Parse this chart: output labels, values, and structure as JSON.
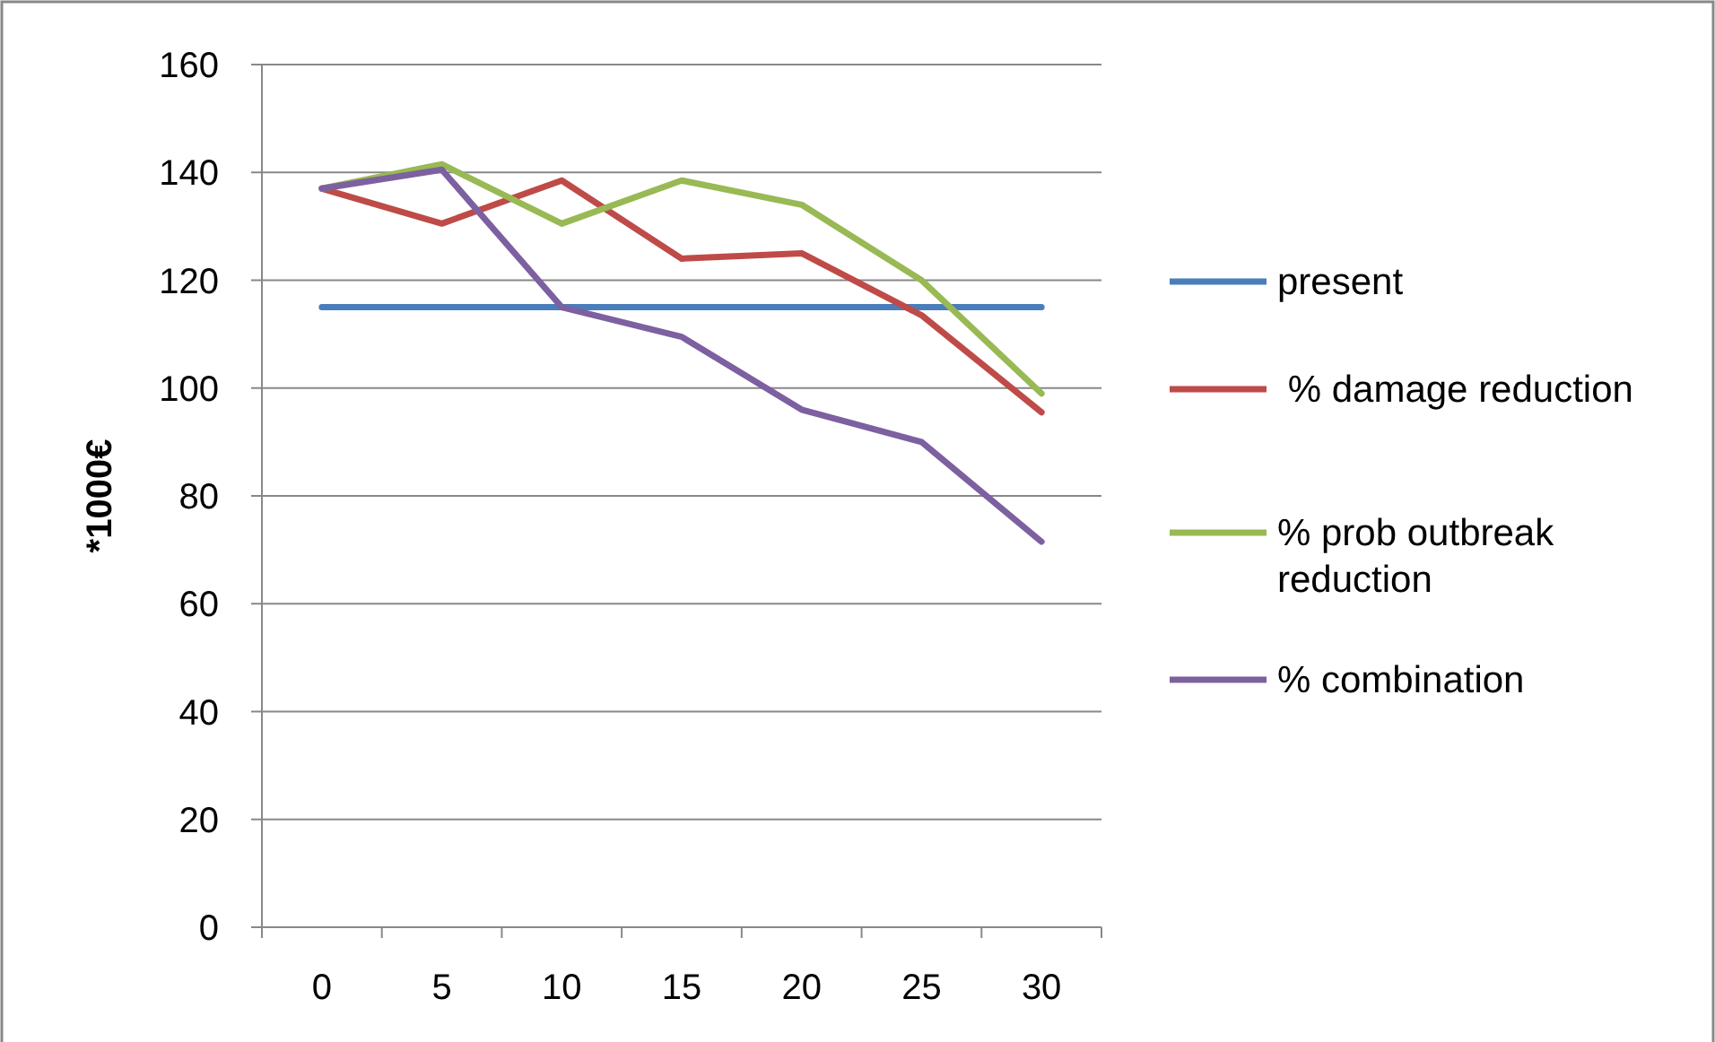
{
  "chart_data": {
    "type": "line",
    "ylabel": "*1000€",
    "categories": [
      "0",
      "5",
      "10",
      "15",
      "20",
      "25",
      "30"
    ],
    "series": [
      {
        "name": "present",
        "color": "#4a7ebb",
        "values": [
          115,
          115,
          115,
          115,
          115,
          115,
          115
        ]
      },
      {
        "name": " % damage reduction",
        "color": "#be4b48",
        "values": [
          137,
          130.5,
          138.5,
          124,
          125,
          113.5,
          95.5
        ]
      },
      {
        "name": "% prob outbreak reduction",
        "color": "#98b954",
        "values": [
          137,
          141.5,
          130.5,
          138.5,
          134,
          120,
          99
        ]
      },
      {
        "name": "% combination",
        "color": "#7d60a0",
        "values": [
          137,
          140.5,
          115,
          109.5,
          96,
          90,
          71.5
        ]
      }
    ],
    "ylim": [
      0,
      160
    ],
    "yticks": [
      0,
      20,
      40,
      60,
      80,
      100,
      120,
      140,
      160
    ],
    "grid": "y",
    "legend": "right",
    "marker": "none",
    "line_style": "solid"
  }
}
